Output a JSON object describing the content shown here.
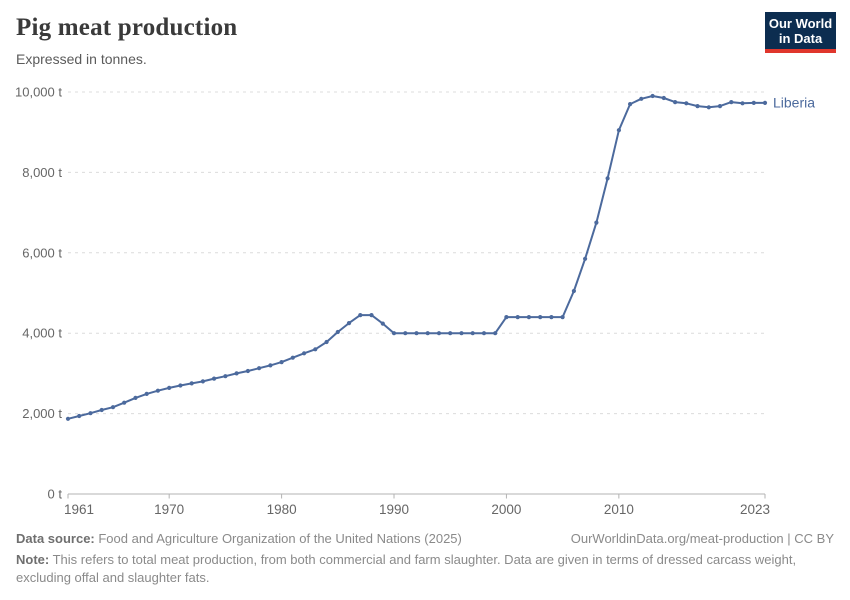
{
  "header": {
    "title": "Pig meat production",
    "subtitle": "Expressed in tonnes."
  },
  "logo": {
    "line1": "Our World",
    "line2": "in Data",
    "bg_color": "#0c2d50",
    "accent_color": "#e0362c"
  },
  "colors": {
    "line": "#4c6a9d",
    "grid": "#dcdcdc",
    "axis": "#b3b3b3",
    "tick_text": "#666666"
  },
  "chart_data": {
    "type": "line",
    "title": "Pig meat production",
    "subtitle": "Expressed in tonnes.",
    "xlabel": "",
    "ylabel": "",
    "ylim": [
      0,
      10000
    ],
    "yticks": [
      0,
      2000,
      4000,
      6000,
      8000,
      10000
    ],
    "ytick_labels": [
      "0 t",
      "2,000 t",
      "4,000 t",
      "6,000 t",
      "8,000 t",
      "10,000 t"
    ],
    "xticks": [
      1961,
      1970,
      1980,
      1990,
      2000,
      2010,
      2023
    ],
    "grid": "horizontal-dashed",
    "legend_position": "end-of-line",
    "x": [
      1961,
      1962,
      1963,
      1964,
      1965,
      1966,
      1967,
      1968,
      1969,
      1970,
      1971,
      1972,
      1973,
      1974,
      1975,
      1976,
      1977,
      1978,
      1979,
      1980,
      1981,
      1982,
      1983,
      1984,
      1985,
      1986,
      1987,
      1988,
      1989,
      1990,
      1991,
      1992,
      1993,
      1994,
      1995,
      1996,
      1997,
      1998,
      1999,
      2000,
      2001,
      2002,
      2003,
      2004,
      2005,
      2006,
      2007,
      2008,
      2009,
      2010,
      2011,
      2012,
      2013,
      2014,
      2015,
      2016,
      2017,
      2018,
      2019,
      2020,
      2021,
      2022,
      2023
    ],
    "series": [
      {
        "name": "Liberia",
        "values": [
          1870,
          1940,
          2010,
          2090,
          2160,
          2270,
          2390,
          2490,
          2570,
          2640,
          2700,
          2750,
          2800,
          2870,
          2930,
          3000,
          3060,
          3130,
          3200,
          3280,
          3390,
          3500,
          3600,
          3780,
          4030,
          4250,
          4450,
          4450,
          4240,
          4000,
          4000,
          4000,
          4000,
          4000,
          4000,
          4000,
          4000,
          4000,
          4000,
          4400,
          4400,
          4400,
          4400,
          4400,
          4400,
          5050,
          5850,
          6750,
          7850,
          9050,
          9700,
          9830,
          9900,
          9850,
          9750,
          9720,
          9650,
          9620,
          9650,
          9750,
          9720,
          9730,
          9730
        ]
      }
    ]
  },
  "footer": {
    "source_label": "Data source:",
    "source_text": " Food and Agriculture Organization of the United Nations (2025)",
    "link_text": "OurWorldinData.org/meat-production | CC BY",
    "note_label": "Note:",
    "note_text": " This refers to total meat production, from both commercial and farm slaughter. Data are given in terms of dressed carcass weight, excluding offal and slaughter fats."
  }
}
